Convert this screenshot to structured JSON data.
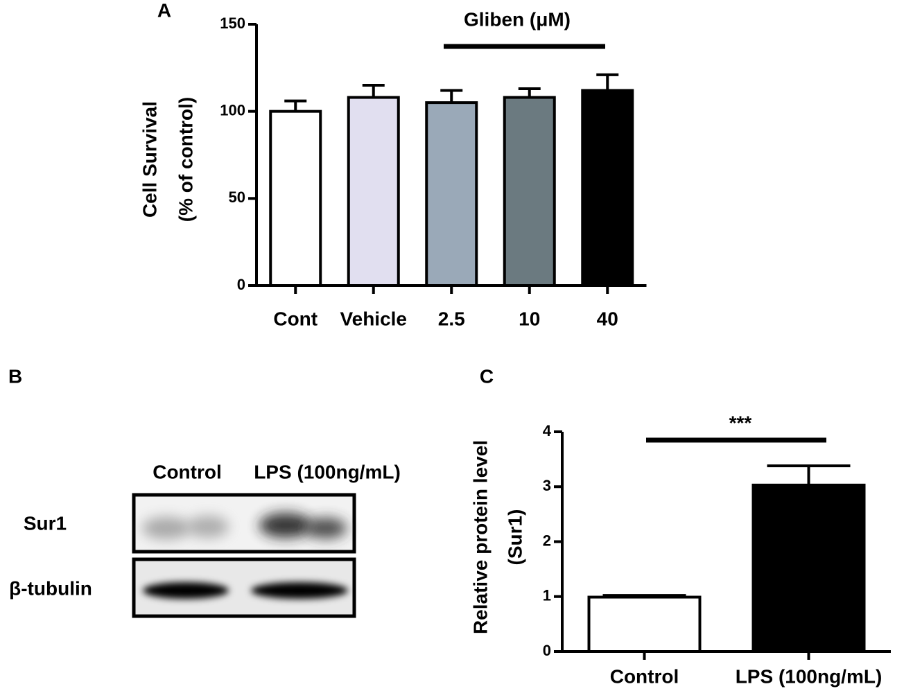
{
  "chart_data": [
    {
      "type": "bar",
      "panel": "A",
      "ylabel": [
        "Cell Survival",
        "(% of control)"
      ],
      "annotation": "Gliben (μM)",
      "categories": [
        "Cont",
        "Vehicle",
        "2.5",
        "10",
        "40"
      ],
      "values": [
        100,
        108,
        105,
        108,
        112
      ],
      "errors": [
        6,
        7,
        7,
        5,
        9
      ],
      "colors": [
        "#ffffff",
        "#e1dff0",
        "#9aa9b8",
        "#6b7a80",
        "#000000"
      ],
      "ylim": [
        0,
        150
      ],
      "yticks": [
        0,
        50,
        100,
        150
      ]
    },
    {
      "type": "bar",
      "panel": "C",
      "ylabel": [
        "Relative protein level",
        "(Sur1)"
      ],
      "annotation": "***",
      "categories": [
        "Control",
        "LPS (100ng/mL)"
      ],
      "values": [
        0.99,
        3.03
      ],
      "errors": [
        0.03,
        0.35
      ],
      "colors": [
        "#ffffff",
        "#000000"
      ],
      "ylim": [
        0,
        4
      ],
      "yticks": [
        0,
        1,
        2,
        3,
        4
      ]
    }
  ],
  "blot": {
    "panel": "B",
    "lanes": [
      "Control",
      "LPS (100ng/mL)"
    ],
    "rows": [
      "Sur1",
      "β-tubulin"
    ]
  }
}
